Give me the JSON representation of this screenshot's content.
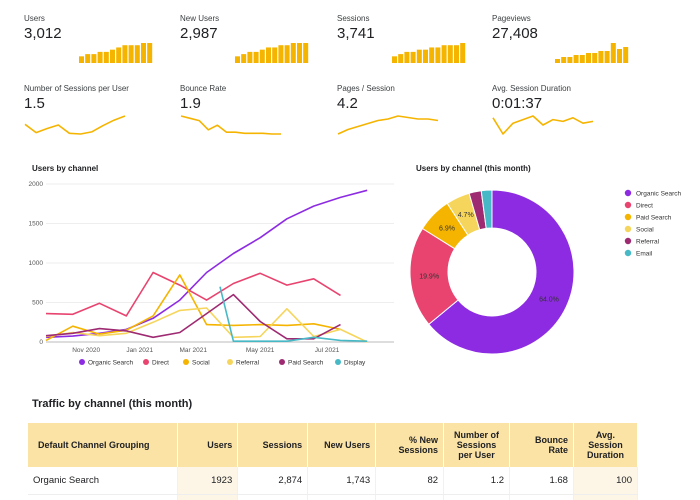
{
  "kpis_top": [
    {
      "label": "Users",
      "value": "3,012",
      "bars": [
        3,
        4,
        4,
        5,
        5,
        6,
        7,
        8,
        8,
        8,
        9,
        9
      ]
    },
    {
      "label": "New Users",
      "value": "2,987",
      "bars": [
        3,
        4,
        5,
        5,
        6,
        7,
        7,
        8,
        8,
        9,
        9,
        9
      ]
    },
    {
      "label": "Sessions",
      "value": "3,741",
      "bars": [
        3,
        4,
        5,
        5,
        6,
        6,
        7,
        7,
        8,
        8,
        8,
        9
      ]
    },
    {
      "label": "Pageviews",
      "value": "27,408",
      "bars": [
        2,
        3,
        3,
        4,
        4,
        5,
        5,
        6,
        6,
        10,
        7,
        8
      ]
    }
  ],
  "kpis_line": [
    {
      "label": "Number of Sessions per User",
      "value": "1.5",
      "points": [
        1.3,
        1.18,
        1.24,
        1.29,
        1.17,
        1.16,
        1.19,
        1.28,
        1.36,
        1.42
      ]
    },
    {
      "label": "Bounce Rate",
      "value": "1.9",
      "points": [
        2.6,
        2.5,
        2.4,
        2.0,
        2.2,
        1.9,
        1.9,
        1.85,
        1.85,
        1.85,
        1.82,
        1.82
      ]
    },
    {
      "label": "Pages / Session",
      "value": "4.2",
      "points": [
        4.0,
        4.15,
        4.25,
        4.35,
        4.45,
        4.5,
        4.6,
        4.55,
        4.5,
        4.5,
        4.45
      ]
    },
    {
      "label": "Avg. Session Duration",
      "value": "0:01:37",
      "points": [
        2.0,
        1.1,
        1.7,
        1.9,
        2.1,
        1.6,
        1.9,
        1.8,
        2.0,
        1.7,
        1.8
      ]
    }
  ],
  "users_by_channel": {
    "title": "Users by channel",
    "chart_data": {
      "type": "line",
      "title": "Users by channel",
      "ylim": [
        0,
        2000
      ],
      "yticks": [
        0,
        500,
        1000,
        1500,
        2000
      ],
      "x_count": 14,
      "xtick_labels": [
        {
          "label": "Nov 2020",
          "index": 1.5
        },
        {
          "label": "Jan 2021",
          "index": 3.5
        },
        {
          "label": "Mar 2021",
          "index": 5.5
        },
        {
          "label": "May 2021",
          "index": 8.0
        },
        {
          "label": "Jul 2021",
          "index": 10.5
        }
      ],
      "series": [
        {
          "name": "Organic Search",
          "color": "#8d2be2",
          "values": [
            60,
            75,
            110,
            160,
            300,
            530,
            880,
            1120,
            1320,
            1560,
            1720,
            1830,
            1920
          ]
        },
        {
          "name": "Direct",
          "color": "#e8446f",
          "values": [
            360,
            350,
            490,
            330,
            880,
            720,
            530,
            740,
            870,
            720,
            800,
            590
          ]
        },
        {
          "name": "Social",
          "color": "#f5b400",
          "values": [
            20,
            200,
            100,
            150,
            330,
            850,
            220,
            210,
            220,
            210,
            230,
            160
          ]
        },
        {
          "name": "Referral",
          "color": "#f6d55c",
          "values": [
            70,
            120,
            80,
            110,
            250,
            400,
            430,
            60,
            70,
            420,
            70,
            160,
            0
          ]
        },
        {
          "name": "Paid Search",
          "color": "#9e2a72",
          "values": [
            80,
            110,
            170,
            140,
            60,
            120,
            360,
            600,
            260,
            40,
            40,
            220
          ]
        },
        {
          "name": "Display",
          "color": "#47b9c6",
          "values": [
            null,
            null,
            null,
            null,
            null,
            null,
            700,
            10,
            10,
            10,
            60,
            20,
            10
          ],
          "start_index": 6.5
        }
      ]
    }
  },
  "users_by_channel_month": {
    "title": "Users by channel (this month)",
    "chart_data": {
      "type": "pie",
      "title": "Users by channel (this month)",
      "slices": [
        {
          "name": "Organic Search",
          "value": 64.0,
          "label": "64.0%",
          "color": "#8d2be2"
        },
        {
          "name": "Direct",
          "value": 19.9,
          "label": "19.9%",
          "color": "#e8446f"
        },
        {
          "name": "Paid Search",
          "value": 6.9,
          "label": "6.9%",
          "color": "#f5b400"
        },
        {
          "name": "Social",
          "value": 4.7,
          "label": "4.7%",
          "color": "#f6d55c"
        },
        {
          "name": "Referral",
          "value": 2.4,
          "label": "",
          "color": "#9e2a72"
        },
        {
          "name": "Email",
          "value": 2.1,
          "label": "",
          "color": "#47b9c6"
        }
      ]
    }
  },
  "traffic_table": {
    "title": "Traffic by channel (this month)",
    "headers": [
      "Default Channel Grouping",
      "Users",
      "Sessions",
      "New Users",
      "% New Sessions",
      "Number of Sessions per User",
      "Bounce Rate",
      "Avg. Session Duration"
    ],
    "rows": [
      [
        "Organic Search",
        "1923",
        "2,874",
        "1,743",
        "82",
        "1.2",
        "1.68",
        "100"
      ]
    ]
  }
}
